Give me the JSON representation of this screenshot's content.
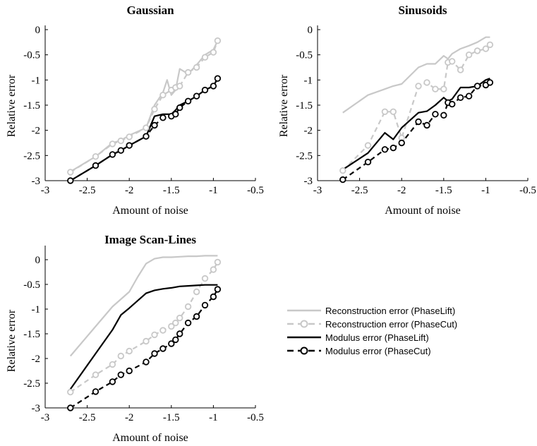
{
  "chart_data": [
    {
      "type": "line",
      "title": "Gaussian",
      "xlabel": "Amount of noise",
      "ylabel": "Relative error",
      "xlim": [
        -3,
        -0.5
      ],
      "ylim": [
        -3,
        0
      ],
      "xticks": [
        "-3",
        "-2.5",
        "-2",
        "-1.5",
        "-1",
        "-0.5"
      ],
      "yticks": [
        "0",
        "-0.5",
        "-1",
        "-1.5",
        "-2",
        "-2.5",
        "-3"
      ],
      "series": [
        {
          "name": "Reconstruction error (PhaseLift)",
          "x": [
            -2.7,
            -2.4,
            -2.2,
            -2.1,
            -2.0,
            -1.8,
            -1.7,
            -1.6,
            -1.55,
            -1.5,
            -1.45,
            -1.4,
            -1.3,
            -1.2,
            -1.1,
            -1.0,
            -0.95
          ],
          "y": [
            -2.82,
            -2.52,
            -2.25,
            -2.2,
            -2.1,
            -1.95,
            -1.5,
            -1.25,
            -1.0,
            -1.3,
            -1.2,
            -0.78,
            -0.88,
            -0.7,
            -0.5,
            -0.4,
            -0.22
          ]
        },
        {
          "name": "Reconstruction error (PhaseCut)",
          "x": [
            -2.7,
            -2.4,
            -2.2,
            -2.1,
            -2.0,
            -1.8,
            -1.7,
            -1.6,
            -1.5,
            -1.45,
            -1.4,
            -1.3,
            -1.2,
            -1.1,
            -1.0,
            -0.95
          ],
          "y": [
            -2.83,
            -2.52,
            -2.27,
            -2.21,
            -2.13,
            -1.95,
            -1.58,
            -1.3,
            -1.2,
            -1.15,
            -1.12,
            -0.85,
            -0.75,
            -0.55,
            -0.45,
            -0.22
          ]
        },
        {
          "name": "Modulus error (PhaseLift)",
          "x": [
            -2.7,
            -2.4,
            -2.2,
            -2.1,
            -2.0,
            -1.8,
            -1.7,
            -1.6,
            -1.5,
            -1.45,
            -1.4,
            -1.3,
            -1.2,
            -1.1,
            -1.0,
            -0.95
          ],
          "y": [
            -3.0,
            -2.7,
            -2.48,
            -2.4,
            -2.3,
            -2.12,
            -1.72,
            -1.68,
            -1.68,
            -1.6,
            -1.5,
            -1.42,
            -1.32,
            -1.2,
            -1.12,
            -0.97
          ]
        },
        {
          "name": "Modulus error (PhaseCut)",
          "x": [
            -2.7,
            -2.4,
            -2.2,
            -2.1,
            -2.0,
            -1.8,
            -1.7,
            -1.6,
            -1.5,
            -1.45,
            -1.4,
            -1.3,
            -1.2,
            -1.1,
            -1.0,
            -0.95
          ],
          "y": [
            -3.0,
            -2.7,
            -2.48,
            -2.4,
            -2.3,
            -2.12,
            -1.9,
            -1.75,
            -1.72,
            -1.68,
            -1.55,
            -1.42,
            -1.32,
            -1.2,
            -1.12,
            -0.97
          ]
        }
      ]
    },
    {
      "type": "line",
      "title": "Sinusoids",
      "xlabel": "Amount of noise",
      "ylabel": "Relative error",
      "xlim": [
        -3,
        -0.5
      ],
      "ylim": [
        -3,
        0
      ],
      "xticks": [
        "-3",
        "-2.5",
        "-2",
        "-1.5",
        "-1",
        "-0.5"
      ],
      "yticks": [
        "0",
        "-0.5",
        "-1",
        "-1.5",
        "-2",
        "-2.5",
        "-3"
      ],
      "series": [
        {
          "name": "Reconstruction error (PhaseLift)",
          "x": [
            -2.7,
            -2.4,
            -2.2,
            -2.1,
            -2.0,
            -1.8,
            -1.7,
            -1.6,
            -1.5,
            -1.45,
            -1.4,
            -1.3,
            -1.2,
            -1.1,
            -1.0,
            -0.95
          ],
          "y": [
            -1.65,
            -1.3,
            -1.18,
            -1.12,
            -1.08,
            -0.75,
            -0.68,
            -0.68,
            -0.52,
            -0.58,
            -0.48,
            -0.38,
            -0.32,
            -0.25,
            -0.15,
            -0.15
          ]
        },
        {
          "name": "Reconstruction error (PhaseCut)",
          "x": [
            -2.7,
            -2.4,
            -2.2,
            -2.1,
            -2.0,
            -1.8,
            -1.7,
            -1.6,
            -1.5,
            -1.45,
            -1.4,
            -1.3,
            -1.2,
            -1.1,
            -1.0,
            -0.95
          ],
          "y": [
            -2.8,
            -2.3,
            -1.63,
            -1.63,
            -2.15,
            -1.12,
            -1.05,
            -1.18,
            -1.18,
            -0.65,
            -0.63,
            -0.8,
            -0.5,
            -0.42,
            -0.38,
            -0.3
          ]
        },
        {
          "name": "Modulus error (PhaseLift)",
          "x": [
            -2.7,
            -2.4,
            -2.2,
            -2.1,
            -2.0,
            -1.8,
            -1.7,
            -1.6,
            -1.5,
            -1.45,
            -1.4,
            -1.3,
            -1.2,
            -1.1,
            -1.0,
            -0.95
          ],
          "y": [
            -2.78,
            -2.45,
            -2.05,
            -2.18,
            -1.95,
            -1.65,
            -1.62,
            -1.5,
            -1.35,
            -1.42,
            -1.38,
            -1.15,
            -1.15,
            -1.12,
            -1.0,
            -0.97
          ]
        },
        {
          "name": "Modulus error (PhaseCut)",
          "x": [
            -2.7,
            -2.4,
            -2.2,
            -2.1,
            -2.0,
            -1.8,
            -1.7,
            -1.6,
            -1.5,
            -1.45,
            -1.4,
            -1.3,
            -1.2,
            -1.1,
            -1.0,
            -0.95
          ],
          "y": [
            -2.98,
            -2.63,
            -2.38,
            -2.35,
            -2.25,
            -1.83,
            -1.9,
            -1.68,
            -1.7,
            -1.45,
            -1.48,
            -1.35,
            -1.32,
            -1.12,
            -1.1,
            -1.05
          ]
        }
      ]
    },
    {
      "type": "line",
      "title": "Image Scan-Lines",
      "xlabel": "Amount of noise",
      "ylabel": "Relative error",
      "xlim": [
        -3,
        -0.5
      ],
      "ylim": [
        -3,
        0.2
      ],
      "xticks": [
        "-3",
        "-2.5",
        "-2",
        "-1.5",
        "-1",
        "-0.5"
      ],
      "yticks": [
        "0",
        "-0.5",
        "-1",
        "-1.5",
        "-2",
        "-2.5",
        "-3"
      ],
      "series": [
        {
          "name": "Reconstruction error (PhaseLift)",
          "x": [
            -2.7,
            -2.4,
            -2.2,
            -2.0,
            -1.9,
            -1.8,
            -1.7,
            -1.6,
            -1.5,
            -1.4,
            -1.3,
            -1.2,
            -1.1,
            -1.0,
            -0.95
          ],
          "y": [
            -1.95,
            -1.35,
            -0.95,
            -0.65,
            -0.35,
            -0.08,
            0.02,
            0.05,
            0.05,
            0.06,
            0.07,
            0.07,
            0.08,
            0.08,
            0.08
          ]
        },
        {
          "name": "Reconstruction error (PhaseCut)",
          "x": [
            -2.7,
            -2.4,
            -2.2,
            -2.1,
            -2.0,
            -1.8,
            -1.7,
            -1.6,
            -1.5,
            -1.45,
            -1.4,
            -1.3,
            -1.2,
            -1.1,
            -1.0,
            -0.95
          ],
          "y": [
            -2.68,
            -2.33,
            -2.12,
            -1.95,
            -1.85,
            -1.65,
            -1.52,
            -1.43,
            -1.35,
            -1.28,
            -1.18,
            -0.95,
            -0.65,
            -0.38,
            -0.2,
            -0.05
          ]
        },
        {
          "name": "Modulus error (PhaseLift)",
          "x": [
            -2.7,
            -2.4,
            -2.2,
            -2.1,
            -2.0,
            -1.8,
            -1.7,
            -1.6,
            -1.5,
            -1.4,
            -1.3,
            -1.2,
            -1.1,
            -1.0,
            -0.95
          ],
          "y": [
            -2.62,
            -1.9,
            -1.42,
            -1.12,
            -0.98,
            -0.68,
            -0.62,
            -0.59,
            -0.57,
            -0.54,
            -0.53,
            -0.52,
            -0.51,
            -0.51,
            -0.51
          ]
        },
        {
          "name": "Modulus error (PhaseCut)",
          "x": [
            -2.7,
            -2.4,
            -2.2,
            -2.1,
            -2.0,
            -1.8,
            -1.7,
            -1.6,
            -1.5,
            -1.45,
            -1.4,
            -1.3,
            -1.2,
            -1.1,
            -1.0,
            -0.95
          ],
          "y": [
            -3.0,
            -2.67,
            -2.47,
            -2.33,
            -2.25,
            -2.07,
            -1.9,
            -1.8,
            -1.7,
            -1.62,
            -1.5,
            -1.28,
            -1.15,
            -0.92,
            -0.75,
            -0.6
          ]
        }
      ]
    }
  ],
  "legend": {
    "placement": "right of Image Scan-Lines panel",
    "items": [
      {
        "label": "Reconstruction error (PhaseLift)",
        "color": "#c8c8c8",
        "dash": "solid",
        "marker": false
      },
      {
        "label": "Reconstruction error (PhaseCut)",
        "color": "#c8c8c8",
        "dash": "dashed",
        "marker": true
      },
      {
        "label": "Modulus error (PhaseLift)",
        "color": "#000000",
        "dash": "solid",
        "marker": false
      },
      {
        "label": "Modulus error (PhaseCut)",
        "color": "#000000",
        "dash": "dashed",
        "marker": true
      }
    ]
  },
  "series_styles": [
    {
      "color": "#c8c8c8",
      "dash": "solid",
      "marker": false
    },
    {
      "color": "#c8c8c8",
      "dash": "dashed",
      "marker": true
    },
    {
      "color": "#000000",
      "dash": "solid",
      "marker": false
    },
    {
      "color": "#000000",
      "dash": "dashed",
      "marker": true
    }
  ]
}
